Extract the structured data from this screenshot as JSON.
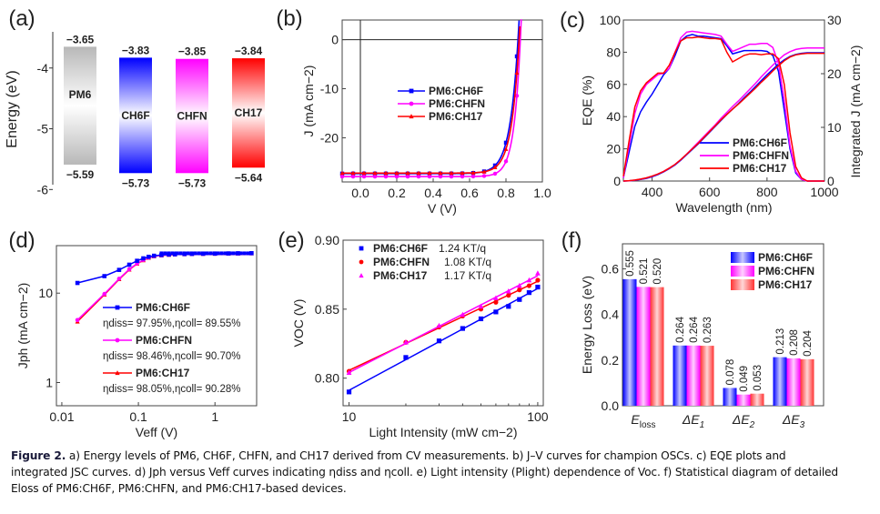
{
  "chart_data": [
    {
      "panel": "a",
      "type": "bar",
      "panel_label": "(a)",
      "title": "",
      "xlabel": "",
      "ylabel": "Energy (eV)",
      "ylim": [
        -6.1,
        -3.3
      ],
      "yticks": [
        -4,
        -5,
        -6
      ],
      "ytick_labels": [
        "-4",
        "-5",
        "-6"
      ],
      "categories": [
        "PM6",
        "CH6F",
        "CHFN",
        "CH17"
      ],
      "lumo": [
        -3.65,
        -3.83,
        -3.85,
        -3.84
      ],
      "homo": [
        -5.59,
        -5.73,
        -5.73,
        -5.64
      ],
      "lumo_labels": [
        "−3.65",
        "−3.83",
        "−3.85",
        "−3.84"
      ],
      "homo_labels": [
        "−5.59",
        "−5.73",
        "−5.73",
        "−5.64"
      ],
      "colors": [
        "#9a9a9a",
        "#0000ff",
        "#ff00ff",
        "#ff0000"
      ]
    },
    {
      "panel": "b",
      "type": "line",
      "panel_label": "(b)",
      "xlabel": "V (V)",
      "ylabel": "J (mA cm−2)",
      "xlim": [
        -0.1,
        1.0
      ],
      "ylim": [
        -29,
        4
      ],
      "xticks": [
        0.0,
        0.2,
        0.4,
        0.6,
        0.8,
        1.0
      ],
      "xtick_labels": [
        "0.0",
        "0.2",
        "0.4",
        "0.6",
        "0.8",
        "1.0"
      ],
      "yticks": [
        0,
        -10,
        -20
      ],
      "ytick_labels": [
        "0",
        "-10",
        "-20"
      ],
      "legend": "center",
      "series": [
        {
          "name": "PM6:CH6F",
          "color": "#0000ff",
          "marker": "square",
          "jsc": -27.3,
          "voc": 0.866,
          "n": 0.045
        },
        {
          "name": "PM6:CHFN",
          "color": "#ff00ff",
          "marker": "circle",
          "jsc": -27.9,
          "voc": 0.879,
          "n": 0.036
        },
        {
          "name": "PM6:CH17",
          "color": "#ff0000",
          "marker": "triangle",
          "jsc": -27.2,
          "voc": 0.872,
          "n": 0.042
        }
      ]
    },
    {
      "panel": "c",
      "type": "line",
      "panel_label": "(c)",
      "xlabel": "Wavelength (nm)",
      "ylabel": "EQE (%)",
      "ylabel_right": "Integrated J (mA cm−2)",
      "xlim": [
        300,
        1000
      ],
      "ylim": [
        0,
        100
      ],
      "ylim_right": [
        0,
        30
      ],
      "xticks": [
        400,
        600,
        800,
        1000
      ],
      "xtick_labels": [
        "400",
        "600",
        "800",
        "1000"
      ],
      "yticks": [
        0,
        20,
        40,
        60,
        80,
        100
      ],
      "ytick_labels": [
        "0",
        "20",
        "40",
        "60",
        "80",
        "100"
      ],
      "yticks_right": [
        0,
        10,
        20,
        30
      ],
      "ytick_labels_right": [
        "0",
        "10",
        "20",
        "30"
      ],
      "legend": "bottom-right",
      "x": [
        300,
        320,
        340,
        360,
        380,
        400,
        420,
        440,
        460,
        480,
        500,
        520,
        540,
        560,
        580,
        600,
        620,
        640,
        660,
        680,
        700,
        720,
        740,
        760,
        780,
        800,
        820,
        840,
        860,
        880,
        900,
        920,
        940,
        960,
        980,
        1000
      ],
      "series": [
        {
          "name": "PM6:CH6F",
          "color": "#0000ff",
          "eqe": [
            2,
            18,
            34,
            43,
            49,
            54,
            60,
            66,
            70,
            78,
            87,
            90,
            91,
            90,
            90,
            89.5,
            89,
            88.5,
            84,
            79,
            80,
            81,
            81,
            81,
            81,
            80.5,
            78,
            68,
            44,
            20,
            5,
            1,
            0,
            0,
            0,
            0
          ],
          "jsc_int": [
            0,
            0.05,
            0.15,
            0.3,
            0.5,
            0.8,
            1.2,
            1.7,
            2.3,
            3.0,
            3.9,
            4.9,
            5.9,
            6.9,
            8.0,
            9.1,
            10.2,
            11.3,
            12.4,
            13.4,
            14.4,
            15.5,
            16.5,
            17.6,
            18.7,
            19.8,
            20.8,
            21.8,
            22.6,
            23.2,
            23.6,
            23.8,
            23.9,
            23.9,
            23.9,
            23.9
          ]
        },
        {
          "name": "PM6:CHFN",
          "color": "#ff00ff",
          "eqe": [
            2,
            22,
            42,
            54,
            60,
            63,
            66,
            67,
            70,
            80,
            89,
            92.5,
            93,
            92.5,
            92,
            91.5,
            91,
            90,
            85,
            80.5,
            82,
            83.5,
            85,
            85,
            85.5,
            85.5,
            83,
            73,
            50,
            22,
            6,
            1,
            0,
            0,
            0,
            0
          ],
          "jsc_int": [
            0,
            0.05,
            0.17,
            0.35,
            0.58,
            0.9,
            1.3,
            1.8,
            2.4,
            3.1,
            4.0,
            5.0,
            6.1,
            7.2,
            8.3,
            9.4,
            10.5,
            11.7,
            12.8,
            13.9,
            14.9,
            16.0,
            17.1,
            18.2,
            19.4,
            20.5,
            21.6,
            22.6,
            23.5,
            24.1,
            24.5,
            24.7,
            24.8,
            24.8,
            24.8,
            24.8
          ]
        },
        {
          "name": "PM6:CH17",
          "color": "#ff0000",
          "eqe": [
            3,
            25,
            46,
            56,
            61,
            64,
            67,
            67,
            72,
            80,
            87,
            89,
            89,
            89.5,
            89,
            88.5,
            88.5,
            88,
            80,
            74,
            76,
            78,
            79,
            79,
            78.5,
            79,
            79,
            76,
            60,
            30,
            9,
            2,
            0,
            0,
            0,
            0
          ],
          "jsc_int": [
            0,
            0.06,
            0.18,
            0.36,
            0.6,
            0.92,
            1.3,
            1.8,
            2.4,
            3.1,
            4.0,
            5.0,
            6.0,
            7.0,
            8.1,
            9.2,
            10.3,
            11.4,
            12.4,
            13.4,
            14.3,
            15.3,
            16.3,
            17.3,
            18.4,
            19.4,
            20.5,
            21.5,
            22.4,
            23.1,
            23.5,
            23.7,
            23.8,
            23.8,
            23.8,
            23.8
          ]
        }
      ]
    },
    {
      "panel": "d",
      "type": "line",
      "panel_label": "(d)",
      "xlabel": "Veff (V)",
      "ylabel": "Jph (mA cm−2)",
      "xscale": "log",
      "yscale": "log",
      "xlim": [
        0.01,
        3.5
      ],
      "ylim": [
        0.55,
        30
      ],
      "xticks": [
        0.01,
        0.1,
        1
      ],
      "xtick_labels": [
        "0.01",
        "0.1",
        "1"
      ],
      "yticks": [
        1,
        10
      ],
      "ytick_labels": [
        "1",
        "10"
      ],
      "legend": "center",
      "x": [
        0.016,
        0.036,
        0.056,
        0.076,
        0.096,
        0.116,
        0.136,
        0.16,
        0.2,
        0.25,
        0.3,
        0.4,
        0.5,
        0.7,
        1.0,
        1.5,
        2.0,
        3.0
      ],
      "series": [
        {
          "name": "PM6:CH6F",
          "color": "#0000ff",
          "marker": "square",
          "annotation": "ηdiss= 97.95%,ηcoll= 89.55%",
          "eta_diss": "97.95%",
          "eta_coll": "89.55%",
          "y": [
            13,
            15.5,
            18.2,
            20.8,
            23.0,
            24.5,
            25.5,
            26.2,
            26.7,
            27.0,
            27.2,
            27.4,
            27.5,
            27.6,
            27.7,
            27.8,
            27.9,
            28.0
          ]
        },
        {
          "name": "PM6:CHFN",
          "color": "#ff00ff",
          "marker": "circle",
          "annotation": "ηdiss= 98.46%,ηcoll= 90.70%",
          "eta_diss": "98.46%",
          "eta_coll": "90.70%",
          "y": [
            5.0,
            9.8,
            14.5,
            18.5,
            21.5,
            23.5,
            25.0,
            25.9,
            26.5,
            26.9,
            27.1,
            27.3,
            27.4,
            27.5,
            27.6,
            27.7,
            27.8,
            27.9
          ]
        },
        {
          "name": "PM6:CH17",
          "color": "#ff0000",
          "marker": "triangle",
          "annotation": "ηdiss= 98.05%,ηcoll= 90.28%",
          "eta_diss": "98.05%",
          "eta_coll": "90.28%",
          "y": [
            4.8,
            9.6,
            14.3,
            18.3,
            21.3,
            23.3,
            24.8,
            25.8,
            26.4,
            26.8,
            27.0,
            27.2,
            27.3,
            27.4,
            27.5,
            27.6,
            27.7,
            27.8
          ]
        }
      ]
    },
    {
      "panel": "e",
      "type": "scatter",
      "panel_label": "(e)",
      "xlabel": "Light Intensity (mW cm−2)",
      "ylabel": "VOC (V)",
      "xscale": "log",
      "xlim": [
        9.3,
        107
      ],
      "ylim": [
        0.78,
        0.9
      ],
      "xticks": [
        10,
        100
      ],
      "xtick_labels": [
        "10",
        "100"
      ],
      "yticks": [
        0.8,
        0.85,
        0.9
      ],
      "ytick_labels": [
        "0.80",
        "0.85",
        "0.90"
      ],
      "legend": "top-left",
      "x": [
        10,
        20,
        30,
        40,
        50,
        60,
        70,
        80,
        90,
        100
      ],
      "series": [
        {
          "name": "PM6:CH6F",
          "slope_label": "1.24 KT/q",
          "slope": 1.24,
          "color": "#0000ff",
          "marker": "square",
          "y": [
            0.79,
            0.815,
            0.827,
            0.836,
            0.843,
            0.848,
            0.852,
            0.857,
            0.862,
            0.866
          ]
        },
        {
          "name": "PM6:CHFN",
          "slope_label": "1.08 KT/q",
          "slope": 1.08,
          "color": "#ff0000",
          "marker": "circle",
          "y": [
            0.805,
            0.826,
            0.837,
            0.845,
            0.85,
            0.855,
            0.86,
            0.864,
            0.867,
            0.871
          ]
        },
        {
          "name": "PM6:CH17",
          "slope_label": "1.17 KT/q",
          "slope": 1.17,
          "color": "#ff00ff",
          "marker": "triangle",
          "y": [
            0.804,
            0.826,
            0.838,
            0.846,
            0.852,
            0.858,
            0.863,
            0.867,
            0.871,
            0.876
          ]
        }
      ]
    },
    {
      "panel": "f",
      "type": "bar",
      "panel_label": "(f)",
      "xlabel": "",
      "ylabel": "Energy Loss (eV)",
      "ylim": [
        0,
        0.71
      ],
      "yticks": [
        0.0,
        0.2,
        0.4,
        0.6
      ],
      "ytick_labels": [
        "0.0",
        "0.2",
        "0.4",
        "0.6"
      ],
      "categories": [
        "Eloss",
        "ΔE1",
        "ΔE2",
        "ΔE3"
      ],
      "category_main": [
        "E",
        "ΔE",
        "ΔE",
        "ΔE"
      ],
      "category_sub": [
        "loss",
        "1",
        "2",
        "3"
      ],
      "legend": "top-right",
      "series": [
        {
          "name": "PM6:CH6F",
          "color": "#0000ff",
          "values": [
            0.555,
            0.264,
            0.078,
            0.213
          ],
          "labels": [
            "0.555",
            "0.264",
            "0.078",
            "0.213"
          ]
        },
        {
          "name": "PM6:CHFN",
          "color": "#ff00ff",
          "values": [
            0.521,
            0.264,
            0.049,
            0.208
          ],
          "labels": [
            "0.521",
            "0.264",
            "0.049",
            "0.208"
          ]
        },
        {
          "name": "PM6:CH17",
          "color": "#ff3333",
          "values": [
            0.52,
            0.263,
            0.053,
            0.204
          ],
          "labels": [
            "0.520",
            "0.263",
            "0.053",
            "0.204"
          ]
        }
      ]
    }
  ],
  "caption": {
    "figure_label": "Figure 2.",
    "line1": "a) Energy levels of PM6, CH6F, CHFN, and CH17 derived from CV measurements. b) J–V curves for champion OSCs. c) EQE plots and",
    "line2": "integrated JSC curves. d) Jph versus Veff curves indicating ηdiss and ηcoll. e) Light intensity (Plight) dependence of Voc. f) Statistical diagram of detailed",
    "line3": "Eloss of PM6:CH6F, PM6:CHFN, and PM6:CH17-based devices."
  }
}
